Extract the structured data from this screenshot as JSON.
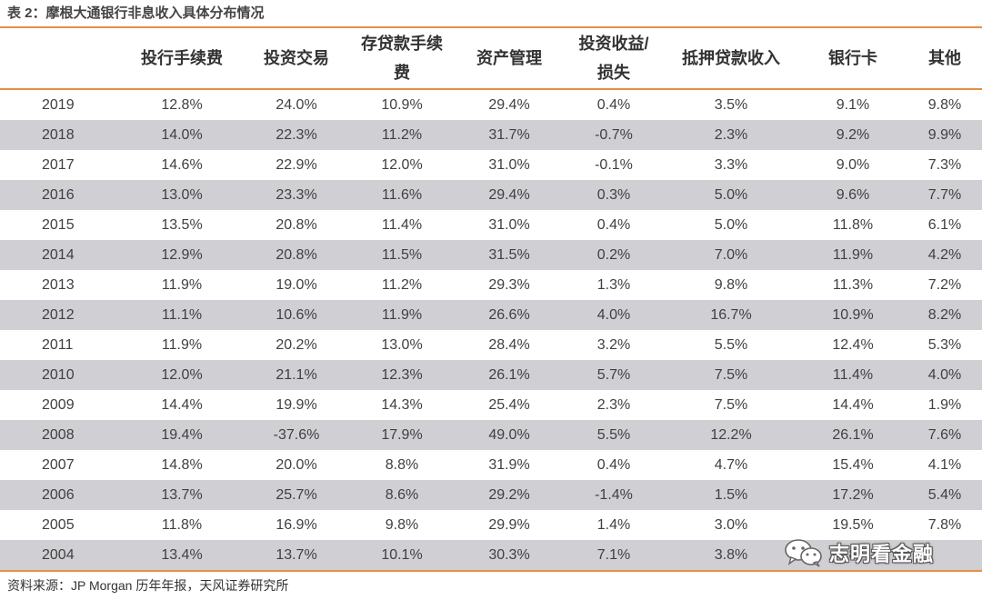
{
  "title": "表 2：摩根大通银行非息收入具体分布情况",
  "table": {
    "columns": [
      "",
      "投行手续费",
      "投资交易",
      "存贷款手续费",
      "资产管理",
      "投资收益/损失",
      "抵押贷款收入",
      "银行卡",
      "其他"
    ],
    "rows": [
      [
        "2019",
        "12.8%",
        "24.0%",
        "10.9%",
        "29.4%",
        "0.4%",
        "3.5%",
        "9.1%",
        "9.8%"
      ],
      [
        "2018",
        "14.0%",
        "22.3%",
        "11.2%",
        "31.7%",
        "-0.7%",
        "2.3%",
        "9.2%",
        "9.9%"
      ],
      [
        "2017",
        "14.6%",
        "22.9%",
        "12.0%",
        "31.0%",
        "-0.1%",
        "3.3%",
        "9.0%",
        "7.3%"
      ],
      [
        "2016",
        "13.0%",
        "23.3%",
        "11.6%",
        "29.4%",
        "0.3%",
        "5.0%",
        "9.6%",
        "7.7%"
      ],
      [
        "2015",
        "13.5%",
        "20.8%",
        "11.4%",
        "31.0%",
        "0.4%",
        "5.0%",
        "11.8%",
        "6.1%"
      ],
      [
        "2014",
        "12.9%",
        "20.8%",
        "11.5%",
        "31.5%",
        "0.2%",
        "7.0%",
        "11.9%",
        "4.2%"
      ],
      [
        "2013",
        "11.9%",
        "19.0%",
        "11.2%",
        "29.3%",
        "1.3%",
        "9.8%",
        "11.3%",
        "7.2%"
      ],
      [
        "2012",
        "11.1%",
        "10.6%",
        "11.9%",
        "26.6%",
        "4.0%",
        "16.7%",
        "10.9%",
        "8.2%"
      ],
      [
        "2011",
        "11.9%",
        "20.2%",
        "13.0%",
        "28.4%",
        "3.2%",
        "5.5%",
        "12.4%",
        "5.3%"
      ],
      [
        "2010",
        "12.0%",
        "21.1%",
        "12.3%",
        "26.1%",
        "5.7%",
        "7.5%",
        "11.4%",
        "4.0%"
      ],
      [
        "2009",
        "14.4%",
        "19.9%",
        "14.3%",
        "25.4%",
        "2.3%",
        "7.5%",
        "14.4%",
        "1.9%"
      ],
      [
        "2008",
        "19.4%",
        "-37.6%",
        "17.9%",
        "49.0%",
        "5.5%",
        "12.2%",
        "26.1%",
        "7.6%"
      ],
      [
        "2007",
        "14.8%",
        "20.0%",
        "8.8%",
        "31.9%",
        "0.4%",
        "4.7%",
        "15.4%",
        "4.1%"
      ],
      [
        "2006",
        "13.7%",
        "25.7%",
        "8.6%",
        "29.2%",
        "-1.4%",
        "1.5%",
        "17.2%",
        "5.4%"
      ],
      [
        "2005",
        "11.8%",
        "16.9%",
        "9.8%",
        "29.9%",
        "1.4%",
        "3.0%",
        "19.5%",
        "7.8%"
      ],
      [
        "2004",
        "13.4%",
        "13.7%",
        "10.1%",
        "30.3%",
        "7.1%",
        "3.8%",
        "8",
        ""
      ]
    ]
  },
  "source": "资料来源：JP Morgan 历年年报，天风证券研究所",
  "watermark": {
    "text": "志明看金融",
    "icon": "wechat-icon"
  },
  "colors": {
    "rule": "#e58f45",
    "stripe": "#d0d0d4"
  }
}
